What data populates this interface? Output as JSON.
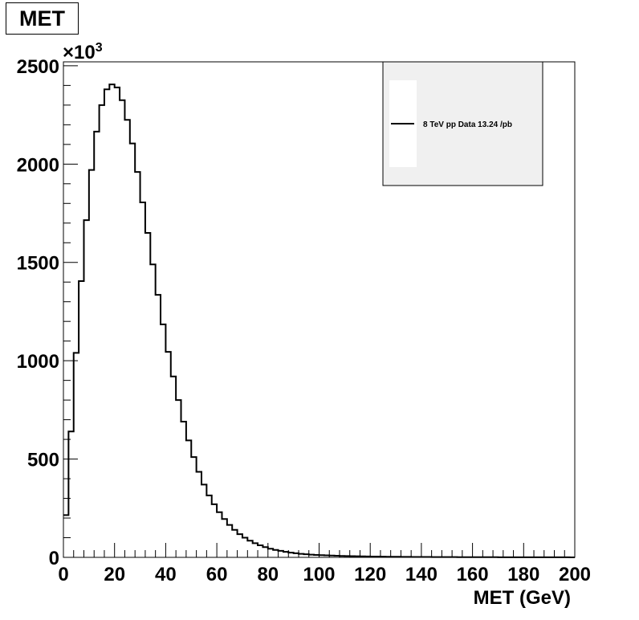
{
  "chart_data": {
    "type": "histogram",
    "title": "MET",
    "xlabel": "MET (GeV)",
    "ylabel": "",
    "y_multiplier_label": "×10",
    "y_multiplier_exponent": "3",
    "xlim": [
      0,
      200
    ],
    "ylim": [
      0,
      2520
    ],
    "bin_width": 2,
    "x_ticks": [
      0,
      20,
      40,
      60,
      80,
      100,
      120,
      140,
      160,
      180,
      200
    ],
    "x_tick_labels": [
      "0",
      "20",
      "40",
      "60",
      "80",
      "100",
      "120",
      "140",
      "160",
      "180",
      "200"
    ],
    "y_ticks": [
      0,
      500,
      1000,
      1500,
      2000,
      2500
    ],
    "y_tick_labels": [
      "0",
      "500",
      "1000",
      "1500",
      "2000",
      "2500"
    ],
    "grid": false,
    "legend_position": "top-right",
    "series": [
      {
        "name": "8 TeV pp Data 13.24 /pb",
        "color": "#000000",
        "bin_edges_start": 0,
        "values": [
          215,
          640,
          1040,
          1405,
          1715,
          1970,
          2165,
          2300,
          2380,
          2405,
          2390,
          2325,
          2225,
          2105,
          1960,
          1805,
          1650,
          1490,
          1335,
          1185,
          1045,
          920,
          800,
          690,
          595,
          510,
          435,
          370,
          315,
          270,
          230,
          195,
          165,
          140,
          118,
          100,
          85,
          72,
          61,
          52,
          44,
          38,
          33,
          28,
          24,
          21,
          18,
          16,
          14,
          12.5,
          11,
          10,
          9,
          8,
          7,
          6.5,
          6,
          5.5,
          5,
          4.6,
          4.2,
          3.9,
          3.6,
          3.3,
          3,
          2.8,
          2.6,
          2.4,
          2.2,
          2,
          1.9,
          1.8,
          1.7,
          1.6,
          1.5,
          1.4,
          1.3,
          1.2,
          1.1,
          1,
          1,
          0.9,
          0.9,
          0.8,
          0.8,
          0.7,
          0.7,
          0.6,
          0.6,
          0.5,
          0.5,
          0.5,
          0.4,
          0.4,
          0.4,
          0.3,
          0.3,
          0.3,
          0.3,
          0.2
        ]
      }
    ]
  },
  "style": {
    "frame_color": "#000000",
    "legend_fill": "#f0f0f0",
    "page_background": "#ffffff"
  }
}
